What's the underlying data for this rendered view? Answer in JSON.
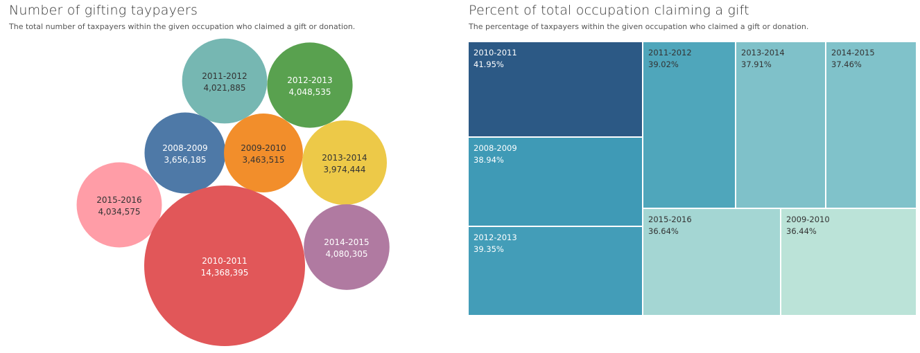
{
  "chart_data": [
    {
      "type": "bubble",
      "title": "Number of gifting taypayers",
      "subtitle": "The total number of taxpayers within the given occupation who claimed a gift or donation.",
      "series": [
        {
          "label": "2011-2012",
          "value": 4021885,
          "display": "4,021,885",
          "color": "#76b7b2",
          "text_color": "#333333"
        },
        {
          "label": "2012-2013",
          "value": 4048535,
          "display": "4,048,535",
          "color": "#59a14f",
          "text_color": "#ffffff"
        },
        {
          "label": "2008-2009",
          "value": 3656185,
          "display": "3,656,185",
          "color": "#4e79a7",
          "text_color": "#ffffff"
        },
        {
          "label": "2009-2010",
          "value": 3463515,
          "display": "3,463,515",
          "color": "#f28e2b",
          "text_color": "#333333"
        },
        {
          "label": "2013-2014",
          "value": 3974444,
          "display": "3,974,444",
          "color": "#edc948",
          "text_color": "#333333"
        },
        {
          "label": "2015-2016",
          "value": 4034575,
          "display": "4,034,575",
          "color": "#ff9da7",
          "text_color": "#333333"
        },
        {
          "label": "2010-2011",
          "value": 14368395,
          "display": "14,368,395",
          "color": "#e15759",
          "text_color": "#ffffff"
        },
        {
          "label": "2014-2015",
          "value": 4080305,
          "display": "4,080,305",
          "color": "#b07aa1",
          "text_color": "#ffffff"
        }
      ]
    },
    {
      "type": "treemap",
      "title": "Percent of total occupation claiming a gift",
      "subtitle": "The percentage of taxpayers within the given occupation who claimed a gift or donation.",
      "series": [
        {
          "label": "2010-2011",
          "value": 41.95,
          "display": "41.95%",
          "color": "#2c5985",
          "text_color": "#ffffff"
        },
        {
          "label": "2008-2009",
          "value": 38.94,
          "display": "38.94%",
          "color": "#3f9ab6",
          "text_color": "#ffffff"
        },
        {
          "label": "2012-2013",
          "value": 39.35,
          "display": "39.35%",
          "color": "#439db8",
          "text_color": "#ffffff"
        },
        {
          "label": "2011-2012",
          "value": 39.02,
          "display": "39.02%",
          "color": "#4fa6bb",
          "text_color": "#333333"
        },
        {
          "label": "2013-2014",
          "value": 37.91,
          "display": "37.91%",
          "color": "#7fc1c9",
          "text_color": "#333333"
        },
        {
          "label": "2014-2015",
          "value": 37.46,
          "display": "37.46%",
          "color": "#80c2ca",
          "text_color": "#333333"
        },
        {
          "label": "2015-2016",
          "value": 36.64,
          "display": "36.64%",
          "color": "#a4d6d3",
          "text_color": "#333333"
        },
        {
          "label": "2009-2010",
          "value": 36.44,
          "display": "36.44%",
          "color": "#bbe3d8",
          "text_color": "#333333"
        }
      ]
    }
  ]
}
